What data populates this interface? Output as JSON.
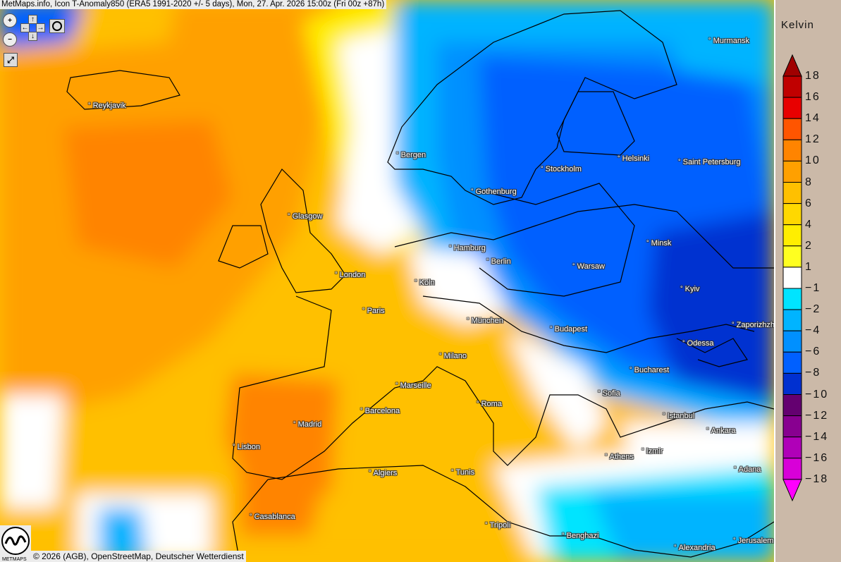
{
  "header": {
    "title": "MetMaps.info, Icon T-Anomaly850 (ERA5 1991-2020 +/- 5 days), Mon, 27. Apr. 2026 15:00z (Fri 00z +87h)"
  },
  "controls": {
    "zoom_in": "zoom-in-icon",
    "zoom_out": "zoom-out-icon",
    "pan_up": "↑",
    "pan_down": "↓",
    "pan_left": "←",
    "pan_right": "→",
    "snapshot": "camera-icon",
    "fullscreen": "fullscreen-icon"
  },
  "cities": [
    {
      "name": "Murmansk"
    },
    {
      "name": "Reykjavik"
    },
    {
      "name": "Bergen"
    },
    {
      "name": "Stockholm"
    },
    {
      "name": "Helsinki"
    },
    {
      "name": "Saint Petersburg"
    },
    {
      "name": "Gothenburg"
    },
    {
      "name": "Glasgow"
    },
    {
      "name": "Hamburg"
    },
    {
      "name": "Berlin"
    },
    {
      "name": "Minsk"
    },
    {
      "name": "Warsaw"
    },
    {
      "name": "London"
    },
    {
      "name": "Köln"
    },
    {
      "name": "Kyiv"
    },
    {
      "name": "Paris"
    },
    {
      "name": "München"
    },
    {
      "name": "Budapest"
    },
    {
      "name": "Zaporizhzhia"
    },
    {
      "name": "Odessa"
    },
    {
      "name": "Milano"
    },
    {
      "name": "Bucharest"
    },
    {
      "name": "Marseille"
    },
    {
      "name": "Sofia"
    },
    {
      "name": "Roma"
    },
    {
      "name": "Barcelona"
    },
    {
      "name": "Istanbul"
    },
    {
      "name": "Madrid"
    },
    {
      "name": "Ankara"
    },
    {
      "name": "Lisbon"
    },
    {
      "name": "Izmir"
    },
    {
      "name": "Athens"
    },
    {
      "name": "Tunis"
    },
    {
      "name": "Algiers"
    },
    {
      "name": "Adana"
    },
    {
      "name": "Casablanca"
    },
    {
      "name": "Tripoli"
    },
    {
      "name": "Benghazi"
    },
    {
      "name": "Alexandria"
    },
    {
      "name": "Jerusalem"
    }
  ],
  "footer": {
    "copyright": "© 2026 (AGB), OpenStreetMap, Deutscher Wetterdienst",
    "logo_text": "METMAPS"
  },
  "legend": {
    "unit": "Kelvin",
    "labels": [
      "18",
      "16",
      "14",
      "12",
      "10",
      "8",
      "6",
      "4",
      "2",
      "1",
      "−1",
      "−2",
      "−4",
      "−6",
      "−8",
      "−10",
      "−12",
      "−14",
      "−16",
      "−18"
    ],
    "colors": [
      "#a00000",
      "#c00000",
      "#e80000",
      "#ff5500",
      "#ff8400",
      "#ffa000",
      "#ffc000",
      "#ffd800",
      "#ffee00",
      "#ffff20",
      "#ffffff",
      "#00e4ff",
      "#00b4ff",
      "#0090ff",
      "#0060ff",
      "#0030d0",
      "#640070",
      "#880090",
      "#b000b8",
      "#d800d8",
      "#ff00ff"
    ]
  }
}
